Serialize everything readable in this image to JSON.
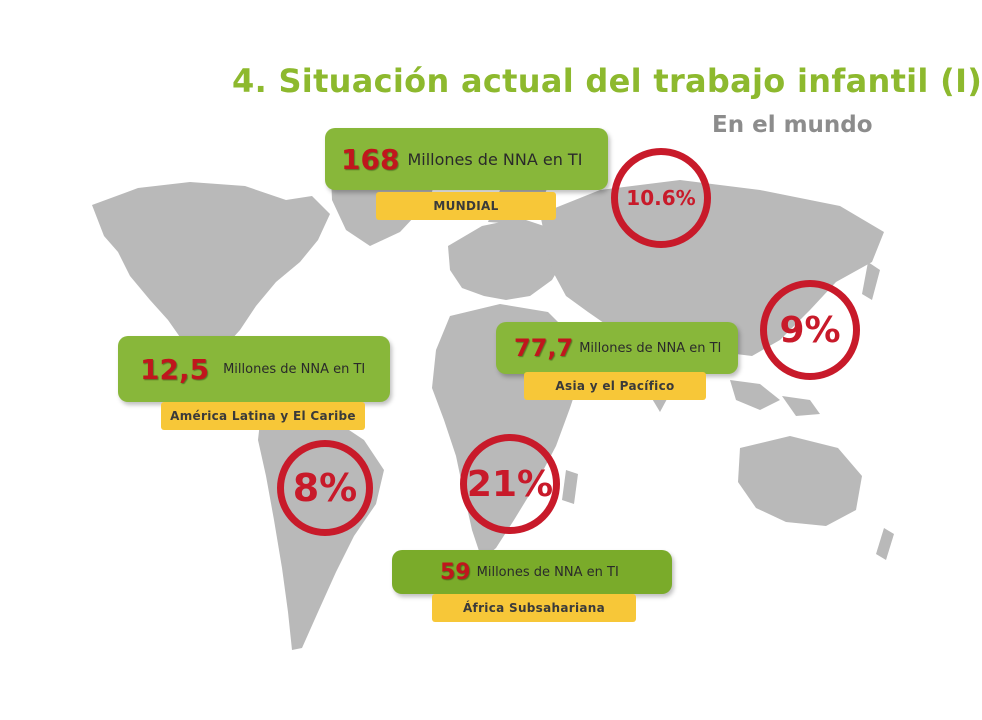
{
  "header": {
    "title": "4. Situación actual del trabajo infantil (I)",
    "subtitle": "En el mundo"
  },
  "regions": {
    "mundial": {
      "value": "168",
      "label": "Millones de NNA en TI",
      "region": "MUNDIAL",
      "percent": "10.6%"
    },
    "latam": {
      "value": "12,5",
      "label": "Millones de NNA en TI",
      "region": "América Latina y El Caribe",
      "percent": "8%"
    },
    "asia": {
      "value": "77,7",
      "label": "Millones de NNA en TI",
      "region": "Asia y el Pacífico",
      "percent": "9%"
    },
    "africa": {
      "value": "59",
      "label": "Millones de NNA en TI",
      "region": "África Subsahariana",
      "percent": "21%"
    }
  },
  "colors": {
    "title": "#8db92e",
    "pill": "#88b73a",
    "tag": "#f7c738",
    "ring": "#c81a2a",
    "map": "#b8b8b8"
  }
}
